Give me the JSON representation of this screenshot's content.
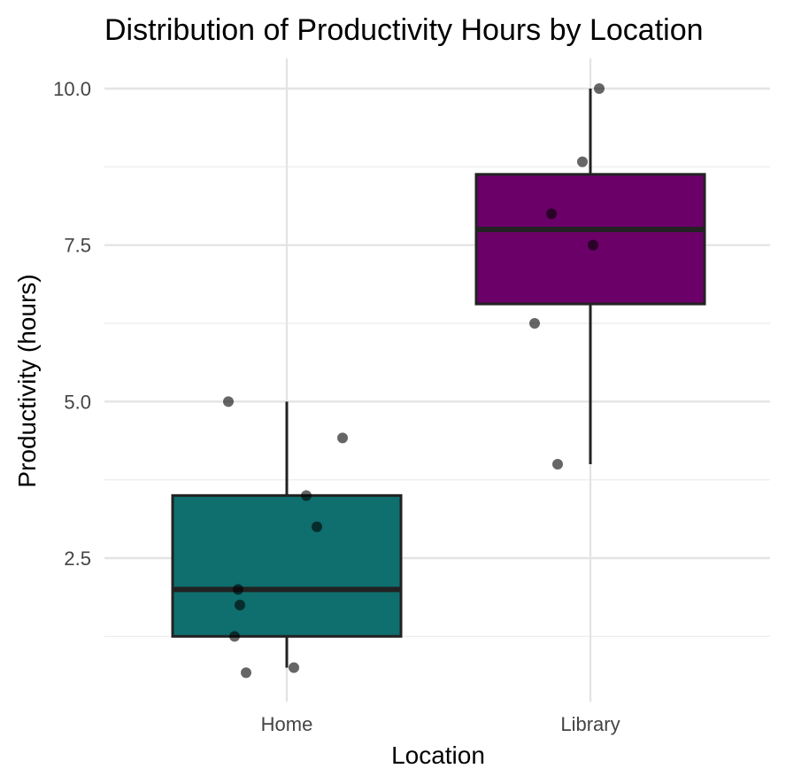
{
  "chart_data": {
    "type": "box",
    "title": "Distribution of Productivity Hours by Location",
    "xlabel": "Location",
    "ylabel": "Productivity (hours)",
    "categories": [
      "Home",
      "Library"
    ],
    "ylim": [
      0.4,
      10.4
    ],
    "y_ticks": [
      2.5,
      5.0,
      7.5,
      10.0
    ],
    "y_tick_labels": [
      "2.5",
      "5.0",
      "7.5",
      "10.0"
    ],
    "grid": true,
    "legend": "none",
    "boxes": [
      {
        "category": "Home",
        "color": "#0f6e6e",
        "q1": 1.25,
        "median": 2.0,
        "q3": 3.5,
        "whisker_low": 0.75,
        "whisker_high": 5.0
      },
      {
        "category": "Library",
        "color": "#6b0068",
        "q1": 6.56,
        "median": 7.75,
        "q3": 8.63,
        "whisker_low": 4.0,
        "whisker_high": 10.0
      }
    ],
    "points": [
      {
        "category": "Home",
        "value": 5.0
      },
      {
        "category": "Home",
        "value": 4.42
      },
      {
        "category": "Home",
        "value": 3.5
      },
      {
        "category": "Home",
        "value": 3.0
      },
      {
        "category": "Home",
        "value": 2.0
      },
      {
        "category": "Home",
        "value": 1.75
      },
      {
        "category": "Home",
        "value": 1.25
      },
      {
        "category": "Home",
        "value": 0.75
      },
      {
        "category": "Home",
        "value": 0.67
      },
      {
        "category": "Library",
        "value": 10.0
      },
      {
        "category": "Library",
        "value": 8.83
      },
      {
        "category": "Library",
        "value": 8.0
      },
      {
        "category": "Library",
        "value": 7.5
      },
      {
        "category": "Library",
        "value": 6.25
      },
      {
        "category": "Library",
        "value": 4.0
      }
    ]
  }
}
